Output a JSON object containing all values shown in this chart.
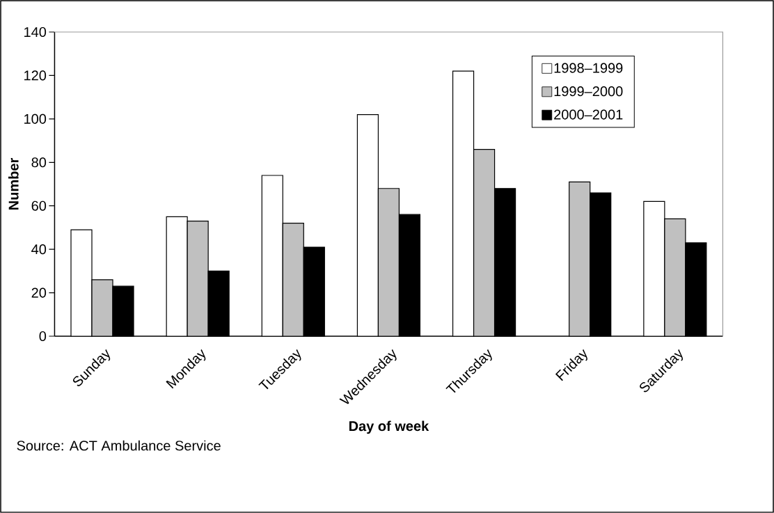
{
  "chart_data": {
    "type": "bar",
    "xlabel": "Day of week",
    "ylabel": "Number",
    "categories": [
      "Sunday",
      "Monday",
      "Tuesday",
      "Wednesday",
      "Thursday",
      "Friday",
      "Saturday"
    ],
    "series": [
      {
        "name": "1998–1999",
        "color": "#ffffff",
        "values": [
          49,
          55,
          74,
          102,
          122,
          null,
          62
        ]
      },
      {
        "name": "1999–2000",
        "color": "#c0c0c0",
        "values": [
          26,
          53,
          52,
          68,
          86,
          71,
          54
        ]
      },
      {
        "name": "2000–2001",
        "color": "#000000",
        "values": [
          23,
          30,
          41,
          56,
          68,
          66,
          43
        ]
      }
    ],
    "ylim": [
      0,
      140
    ],
    "yticks": [
      0,
      20,
      40,
      60,
      80,
      100,
      120,
      140
    ],
    "legend": "top right",
    "annotations": [
      "Source: ACT Ambulance Service"
    ]
  }
}
